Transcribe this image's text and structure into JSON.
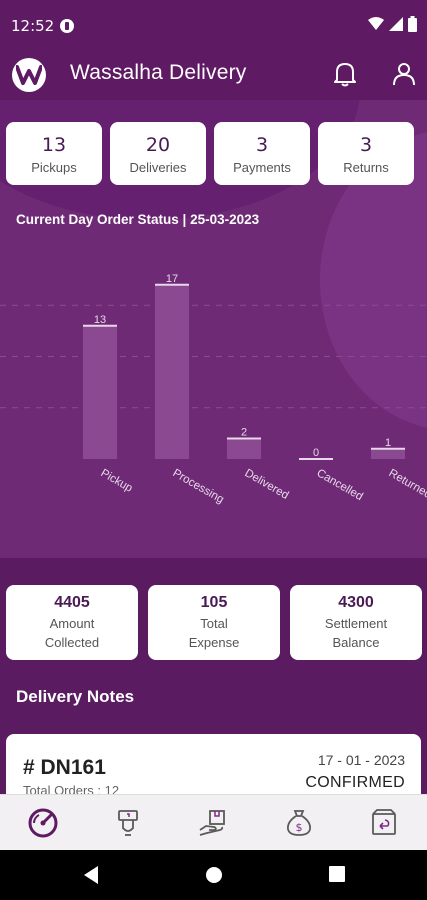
{
  "status_bar": {
    "time": "12:52"
  },
  "header": {
    "title": "Wassalha Delivery"
  },
  "stats": [
    {
      "value": "13",
      "label": "Pickups"
    },
    {
      "value": "20",
      "label": "Deliveries"
    },
    {
      "value": "3",
      "label": "Payments"
    },
    {
      "value": "3",
      "label": "Returns"
    }
  ],
  "chart_title": "Current Day Order Status | 25-03-2023",
  "chart_data": {
    "type": "bar",
    "title": "Current Day Order Status | 25-03-2023",
    "categories": [
      "Pickup",
      "Processing",
      "Delivered",
      "Cancelled",
      "Returned"
    ],
    "values": [
      13,
      17,
      2,
      0,
      1
    ],
    "ylim": [
      0,
      20
    ],
    "grid": true,
    "legend": "none"
  },
  "summary": [
    {
      "value": "4405",
      "line1": "Amount",
      "line2": "Collected"
    },
    {
      "value": "105",
      "line1": "Total",
      "line2": "Expense"
    },
    {
      "value": "4300",
      "line1": "Settlement",
      "line2": "Balance"
    }
  ],
  "notes_title": "Delivery Notes",
  "note": {
    "id": "# DN161",
    "date": "17 - 01 - 2023",
    "status": "CONFIRMED",
    "sub": "Total Orders : 12"
  },
  "nav_icons": [
    "dashboard-icon",
    "pickup-icon",
    "delivery-icon",
    "payment-icon",
    "return-icon"
  ],
  "colors": {
    "primary": "#5e1a62",
    "chart_bg": "#6e2a75",
    "card_text": "#4a1a55"
  }
}
